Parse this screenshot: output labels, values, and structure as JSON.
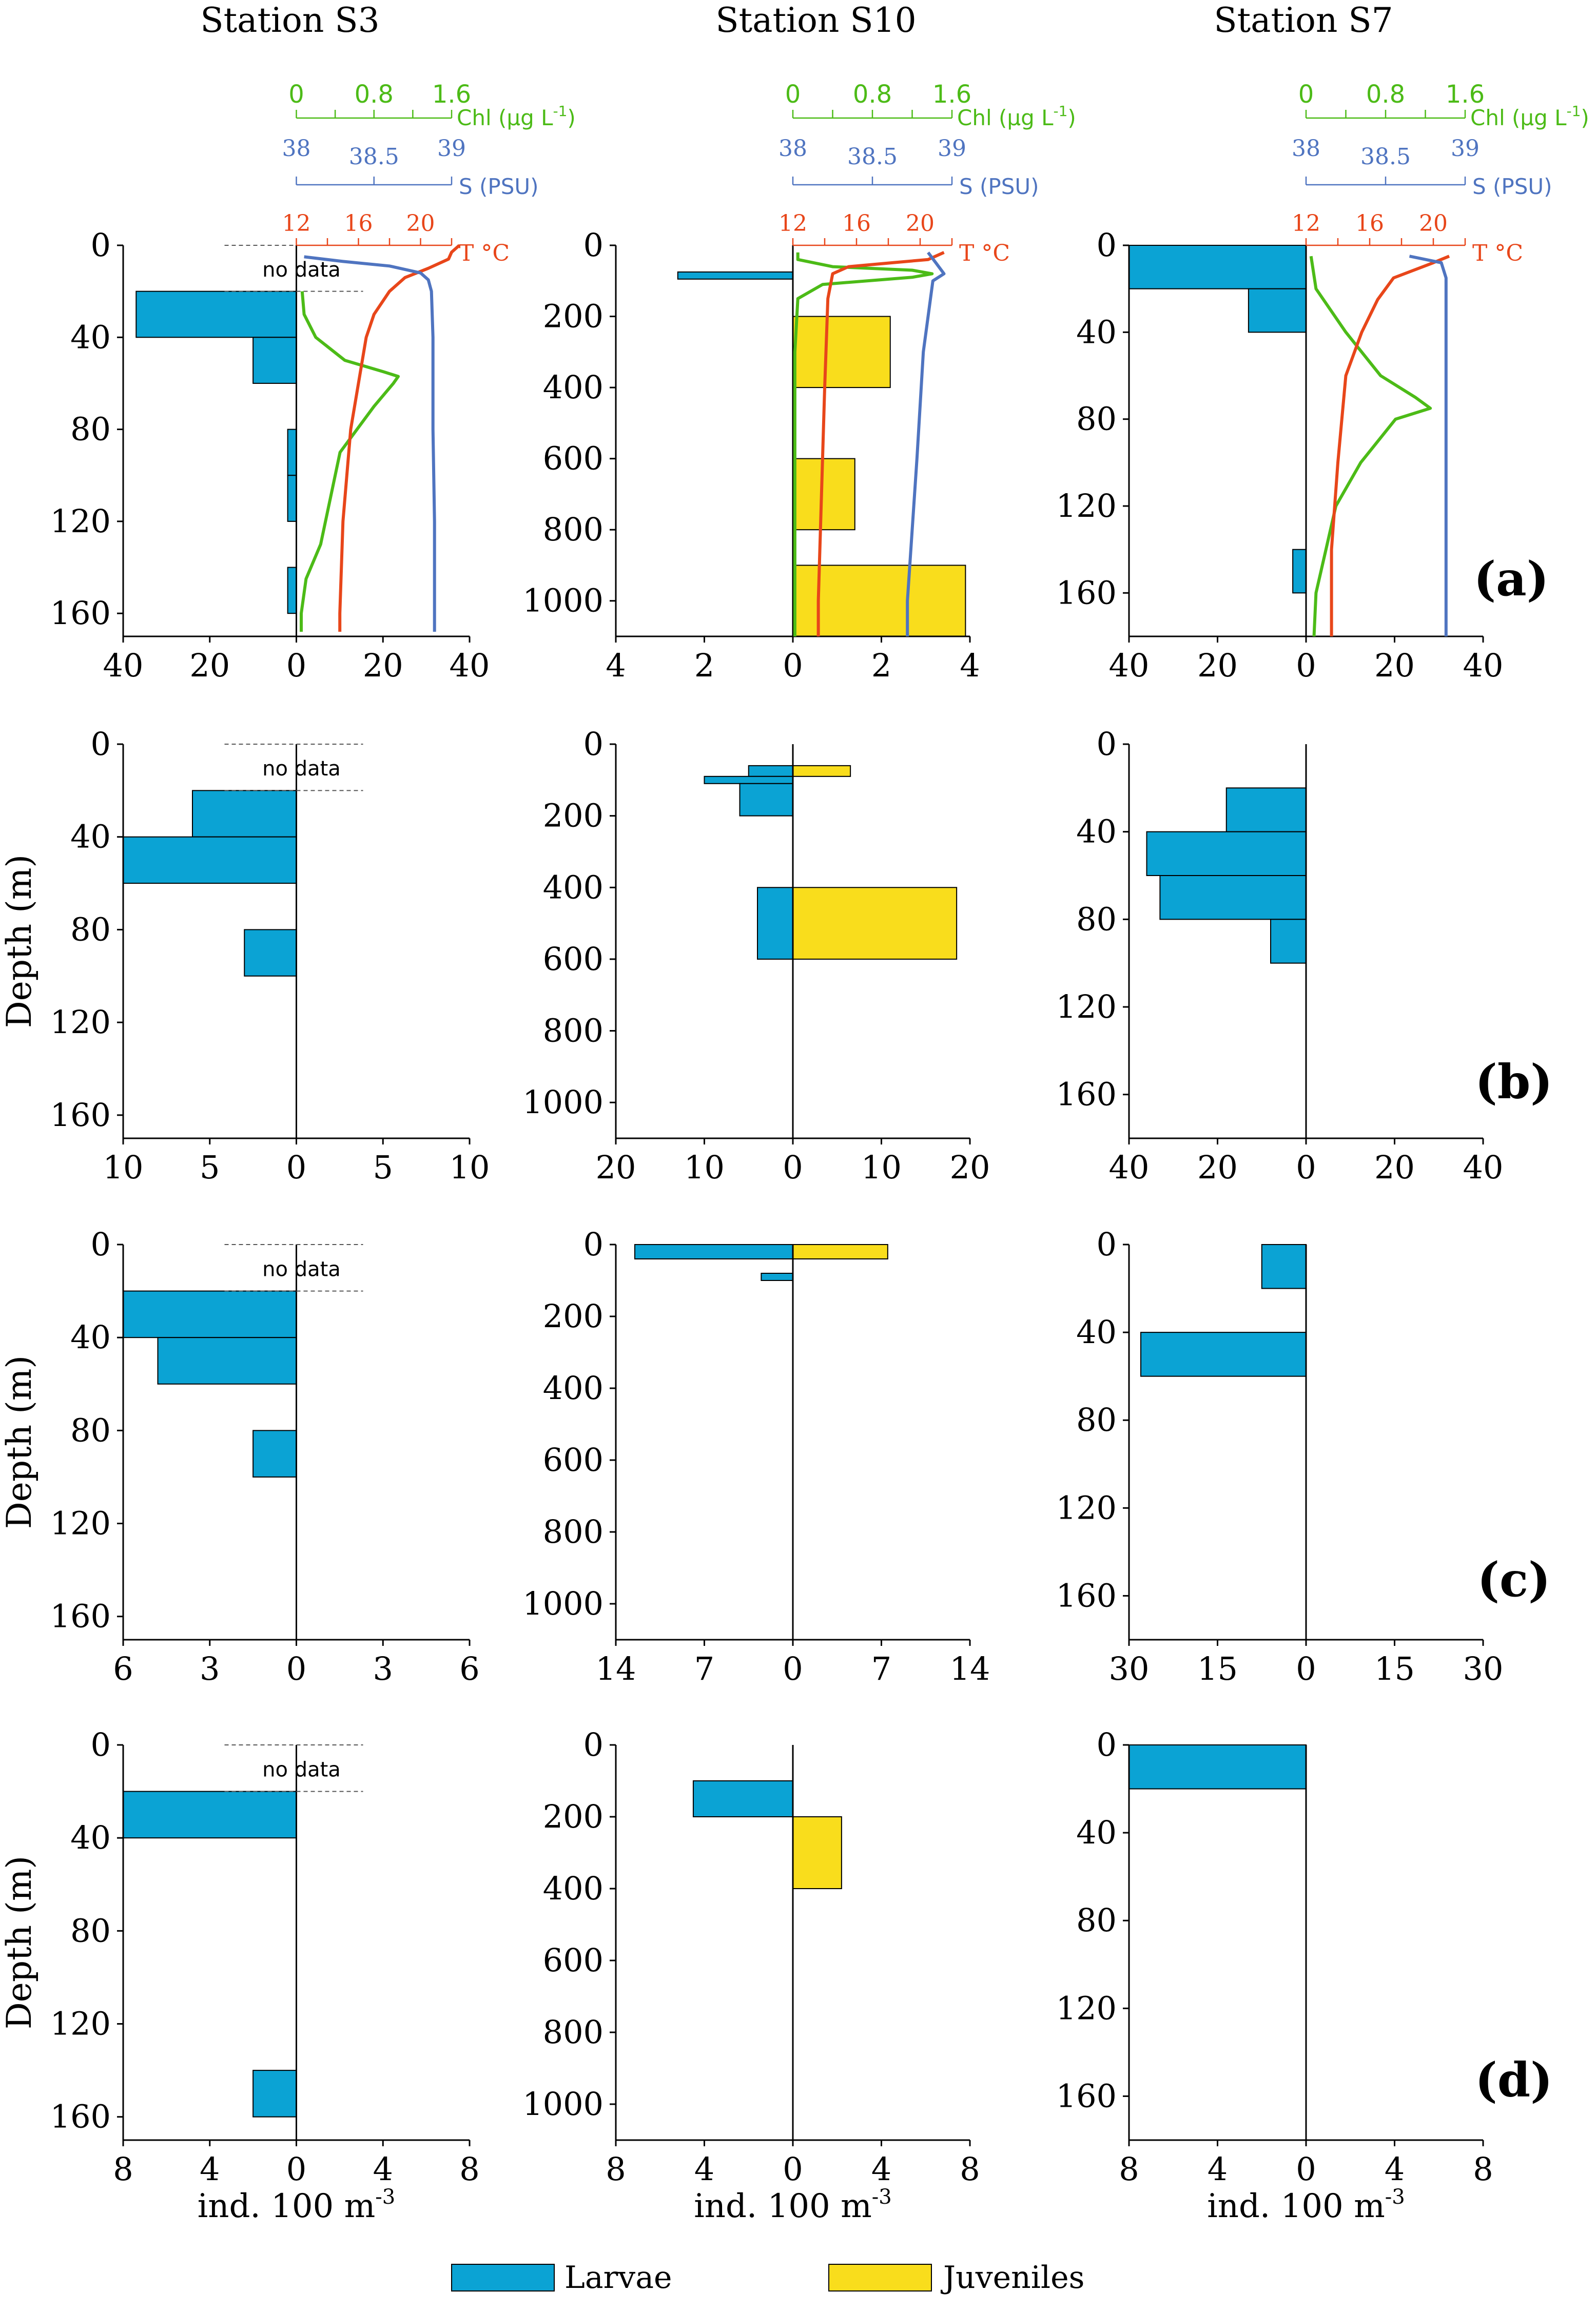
{
  "figure": {
    "station_titles": [
      "Station S3",
      "Station S10",
      "Station S7"
    ],
    "ylabel": "Depth (m)",
    "xlabel_base": "ind. 100 m",
    "xlabel_exp": "-3",
    "no_data_label": "no data",
    "legend": [
      {
        "key": "larvae",
        "label": "Larvae",
        "color": "#0ba3d4"
      },
      {
        "key": "juveniles",
        "label": "Juveniles",
        "color": "#f9dd1c"
      }
    ],
    "colors": {
      "larvae": "#0ba3d4",
      "juveniles": "#f9dd1c",
      "temperature": "#e8461a",
      "salinity": "#4f74c0",
      "chlorophyll": "#4cbb17",
      "axis": "#000000"
    },
    "env_axes": {
      "chl": {
        "label": "Chl (μg L",
        "label_exp": "-1",
        "label_end": ")",
        "ticks": [
          "0",
          "0.8",
          "1.6"
        ],
        "range": [
          0,
          1.6
        ]
      },
      "sal": {
        "label": "S (PSU)",
        "ticks": [
          "38",
          "38.5",
          "39"
        ],
        "range": [
          38,
          39
        ]
      },
      "temp": {
        "label": "T °C",
        "ticks": [
          "12",
          "16",
          "20"
        ],
        "range": [
          12,
          22
        ]
      }
    }
  },
  "chart_data": [
    {
      "type": "bar",
      "row": "a",
      "row_label": "(a)",
      "station": "S3",
      "ylim": [
        0,
        170
      ],
      "yticks": [
        0,
        40,
        80,
        120,
        160
      ],
      "xmax": 40,
      "xticks": [
        40,
        20,
        0,
        20,
        40
      ],
      "no_data": [
        0,
        20
      ],
      "larvae": [
        {
          "top": 20,
          "bottom": 40,
          "value": 37
        },
        {
          "top": 40,
          "bottom": 60,
          "value": 10
        },
        {
          "top": 80,
          "bottom": 100,
          "value": 2
        },
        {
          "top": 100,
          "bottom": 120,
          "value": 2
        },
        {
          "top": 140,
          "bottom": 160,
          "value": 2
        }
      ],
      "juveniles": [],
      "profiles": {
        "temperature": [
          [
            0,
            22.5
          ],
          [
            3,
            22
          ],
          [
            6,
            21.8
          ],
          [
            10,
            20.5
          ],
          [
            14,
            19
          ],
          [
            20,
            18
          ],
          [
            30,
            17
          ],
          [
            40,
            16.5
          ],
          [
            60,
            16
          ],
          [
            80,
            15.5
          ],
          [
            120,
            15
          ],
          [
            160,
            14.8
          ],
          [
            168,
            14.8
          ]
        ],
        "salinity": [
          [
            5,
            38.05
          ],
          [
            7,
            38.3
          ],
          [
            9,
            38.6
          ],
          [
            12,
            38.8
          ],
          [
            15,
            38.85
          ],
          [
            20,
            38.87
          ],
          [
            40,
            38.88
          ],
          [
            80,
            38.88
          ],
          [
            120,
            38.89
          ],
          [
            168,
            38.89
          ]
        ],
        "chlorophyll": [
          [
            20,
            0.06
          ],
          [
            30,
            0.08
          ],
          [
            40,
            0.2
          ],
          [
            50,
            0.5
          ],
          [
            55,
            0.9
          ],
          [
            57,
            1.05
          ],
          [
            60,
            1.0
          ],
          [
            70,
            0.8
          ],
          [
            90,
            0.45
          ],
          [
            110,
            0.35
          ],
          [
            130,
            0.25
          ],
          [
            145,
            0.1
          ],
          [
            160,
            0.05
          ],
          [
            168,
            0.05
          ]
        ]
      }
    },
    {
      "type": "bar",
      "row": "a",
      "station": "S10",
      "ylim": [
        0,
        1100
      ],
      "yticks": [
        0,
        200,
        400,
        600,
        800,
        1000
      ],
      "xmax": 4,
      "xticks": [
        4,
        2,
        0,
        2,
        4
      ],
      "larvae": [
        {
          "top": 75,
          "bottom": 95,
          "value": 2.6
        }
      ],
      "juveniles": [
        {
          "top": 200,
          "bottom": 400,
          "value": 2.2
        },
        {
          "top": 600,
          "bottom": 800,
          "value": 1.4
        },
        {
          "top": 900,
          "bottom": 1100,
          "value": 3.9
        }
      ],
      "profiles": {
        "temperature": [
          [
            20,
            21.5
          ],
          [
            40,
            20.5
          ],
          [
            50,
            18
          ],
          [
            60,
            15.5
          ],
          [
            80,
            14.5
          ],
          [
            150,
            14.2
          ],
          [
            400,
            14.0
          ],
          [
            700,
            13.8
          ],
          [
            1000,
            13.6
          ],
          [
            1100,
            13.6
          ]
        ],
        "salinity": [
          [
            20,
            38.85
          ],
          [
            50,
            38.9
          ],
          [
            80,
            38.95
          ],
          [
            100,
            38.88
          ],
          [
            300,
            38.82
          ],
          [
            600,
            38.78
          ],
          [
            800,
            38.75
          ],
          [
            1000,
            38.72
          ],
          [
            1100,
            38.72
          ]
        ],
        "chlorophyll": [
          [
            20,
            0.05
          ],
          [
            40,
            0.05
          ],
          [
            60,
            0.4
          ],
          [
            70,
            1.2
          ],
          [
            80,
            1.4
          ],
          [
            90,
            1.2
          ],
          [
            110,
            0.3
          ],
          [
            150,
            0.05
          ],
          [
            300,
            0.02
          ],
          [
            1100,
            0.02
          ]
        ]
      }
    },
    {
      "type": "bar",
      "row": "a",
      "station": "S7",
      "ylim": [
        0,
        180
      ],
      "yticks": [
        0,
        40,
        80,
        120,
        160
      ],
      "xmax": 40,
      "xticks": [
        40,
        20,
        0,
        20,
        40
      ],
      "larvae": [
        {
          "top": 0,
          "bottom": 20,
          "value": 40
        },
        {
          "top": 20,
          "bottom": 40,
          "value": 13
        },
        {
          "top": 140,
          "bottom": 160,
          "value": 3
        }
      ],
      "juveniles": [],
      "profiles": {
        "temperature": [
          [
            5,
            21
          ],
          [
            8,
            20
          ],
          [
            15,
            17.5
          ],
          [
            25,
            16.5
          ],
          [
            40,
            15.5
          ],
          [
            60,
            14.5
          ],
          [
            100,
            14.0
          ],
          [
            140,
            13.6
          ],
          [
            180,
            13.6
          ]
        ],
        "salinity": [
          [
            5,
            38.65
          ],
          [
            8,
            38.85
          ],
          [
            15,
            38.88
          ],
          [
            80,
            38.88
          ],
          [
            180,
            38.88
          ]
        ],
        "chlorophyll": [
          [
            5,
            0.05
          ],
          [
            20,
            0.1
          ],
          [
            40,
            0.4
          ],
          [
            60,
            0.75
          ],
          [
            70,
            1.1
          ],
          [
            75,
            1.25
          ],
          [
            80,
            0.9
          ],
          [
            100,
            0.55
          ],
          [
            120,
            0.3
          ],
          [
            140,
            0.2
          ],
          [
            160,
            0.1
          ],
          [
            180,
            0.08
          ]
        ]
      }
    },
    {
      "type": "bar",
      "row": "b",
      "row_label": "(b)",
      "station": "S3",
      "ylim": [
        0,
        170
      ],
      "yticks": [
        0,
        40,
        80,
        120,
        160
      ],
      "xmax": 10,
      "xticks": [
        10,
        5,
        0,
        5,
        10
      ],
      "no_data": [
        0,
        20
      ],
      "larvae": [
        {
          "top": 20,
          "bottom": 40,
          "value": 6
        },
        {
          "top": 40,
          "bottom": 60,
          "value": 10
        },
        {
          "top": 80,
          "bottom": 100,
          "value": 3
        }
      ],
      "juveniles": []
    },
    {
      "type": "bar",
      "row": "b",
      "station": "S10",
      "ylim": [
        0,
        1100
      ],
      "yticks": [
        0,
        200,
        400,
        600,
        800,
        1000
      ],
      "xmax": 20,
      "xticks": [
        20,
        10,
        0,
        10,
        20
      ],
      "larvae": [
        {
          "top": 60,
          "bottom": 90,
          "value": 5
        },
        {
          "top": 90,
          "bottom": 110,
          "value": 10
        },
        {
          "top": 110,
          "bottom": 200,
          "value": 6
        },
        {
          "top": 400,
          "bottom": 600,
          "value": 4
        }
      ],
      "juveniles": [
        {
          "top": 60,
          "bottom": 90,
          "value": 6.5
        },
        {
          "top": 400,
          "bottom": 600,
          "value": 18.5
        }
      ]
    },
    {
      "type": "bar",
      "row": "b",
      "station": "S7",
      "ylim": [
        0,
        180
      ],
      "yticks": [
        0,
        40,
        80,
        120,
        160
      ],
      "xmax": 40,
      "xticks": [
        40,
        20,
        0,
        20,
        40
      ],
      "larvae": [
        {
          "top": 20,
          "bottom": 40,
          "value": 18
        },
        {
          "top": 40,
          "bottom": 60,
          "value": 36
        },
        {
          "top": 60,
          "bottom": 80,
          "value": 33
        },
        {
          "top": 80,
          "bottom": 100,
          "value": 8
        }
      ],
      "juveniles": []
    },
    {
      "type": "bar",
      "row": "c",
      "row_label": "(c)",
      "station": "S3",
      "ylim": [
        0,
        170
      ],
      "yticks": [
        0,
        40,
        80,
        120,
        160
      ],
      "xmax": 6,
      "xticks": [
        6,
        3,
        0,
        3,
        6
      ],
      "no_data": [
        0,
        20
      ],
      "larvae": [
        {
          "top": 20,
          "bottom": 40,
          "value": 6
        },
        {
          "top": 40,
          "bottom": 60,
          "value": 4.8
        },
        {
          "top": 80,
          "bottom": 100,
          "value": 1.5
        }
      ],
      "juveniles": []
    },
    {
      "type": "bar",
      "row": "c",
      "station": "S10",
      "ylim": [
        0,
        1100
      ],
      "yticks": [
        0,
        200,
        400,
        600,
        800,
        1000
      ],
      "xmax": 14,
      "xticks": [
        14,
        7,
        0,
        7,
        14
      ],
      "larvae": [
        {
          "top": 0,
          "bottom": 40,
          "value": 12.5
        },
        {
          "top": 80,
          "bottom": 100,
          "value": 2.5
        }
      ],
      "juveniles": [
        {
          "top": 0,
          "bottom": 40,
          "value": 7.5
        }
      ]
    },
    {
      "type": "bar",
      "row": "c",
      "station": "S7",
      "ylim": [
        0,
        180
      ],
      "yticks": [
        0,
        40,
        80,
        120,
        160
      ],
      "xmax": 30,
      "xticks": [
        30,
        15,
        0,
        15,
        30
      ],
      "larvae": [
        {
          "top": 0,
          "bottom": 20,
          "value": 7.5
        },
        {
          "top": 40,
          "bottom": 60,
          "value": 28
        }
      ],
      "juveniles": []
    },
    {
      "type": "bar",
      "row": "d",
      "row_label": "(d)",
      "station": "S3",
      "ylim": [
        0,
        170
      ],
      "yticks": [
        0,
        40,
        80,
        120,
        160
      ],
      "xmax": 8,
      "xticks": [
        8,
        4,
        0,
        4,
        8
      ],
      "no_data": [
        0,
        20
      ],
      "larvae": [
        {
          "top": 20,
          "bottom": 40,
          "value": 8
        },
        {
          "top": 140,
          "bottom": 160,
          "value": 2
        }
      ],
      "juveniles": []
    },
    {
      "type": "bar",
      "row": "d",
      "station": "S10",
      "ylim": [
        0,
        1100
      ],
      "yticks": [
        0,
        200,
        400,
        600,
        800,
        1000
      ],
      "xmax": 8,
      "xticks": [
        8,
        4,
        0,
        4,
        8
      ],
      "larvae": [
        {
          "top": 100,
          "bottom": 200,
          "value": 4.5
        }
      ],
      "juveniles": [
        {
          "top": 200,
          "bottom": 400,
          "value": 2.2
        }
      ]
    },
    {
      "type": "bar",
      "row": "d",
      "station": "S7",
      "ylim": [
        0,
        180
      ],
      "yticks": [
        0,
        40,
        80,
        120,
        160
      ],
      "xmax": 8,
      "xticks": [
        8,
        4,
        0,
        4,
        8
      ],
      "larvae": [
        {
          "top": 0,
          "bottom": 20,
          "value": 8
        }
      ],
      "juveniles": []
    }
  ]
}
